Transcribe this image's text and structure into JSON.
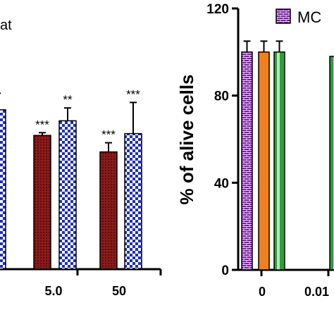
{
  "chart_data": [
    {
      "type": "bar",
      "title_fragment": "at",
      "ylim": [
        0,
        120
      ],
      "categories": [
        "",
        "5.0",
        "50"
      ],
      "series": [
        {
          "name": "",
          "color": "#8b1a1a",
          "pattern": "dots",
          "values": [
            null,
            73,
            64
          ],
          "errors": [
            null,
            1.5,
            5
          ],
          "sig": [
            "",
            "***",
            "***"
          ]
        },
        {
          "name": "",
          "color": "#1f2fb8",
          "pattern": "checker",
          "values": [
            87,
            81,
            74
          ],
          "errors": [
            9,
            7,
            17
          ],
          "sig": [
            "*",
            "**",
            "***"
          ]
        }
      ]
    },
    {
      "type": "bar",
      "ylabel": "% of alive cells",
      "ylim": [
        0,
        120
      ],
      "yticks": [
        "0",
        "40",
        "80",
        "120"
      ],
      "categories": [
        "0",
        "0.01"
      ],
      "legend_label": "MC",
      "series": [
        {
          "name": "MC",
          "color": "#7b1fa2",
          "pattern": "brick",
          "values": [
            100,
            null
          ],
          "errors": [
            5,
            null
          ]
        },
        {
          "name": "",
          "color": "#f07f1c",
          "pattern": "solid",
          "values": [
            100,
            null
          ],
          "errors": [
            5,
            null
          ]
        },
        {
          "name": "",
          "color": "#2e9e3a",
          "pattern": "stripe",
          "values": [
            100,
            98
          ],
          "errors": [
            5,
            null
          ]
        }
      ]
    }
  ]
}
